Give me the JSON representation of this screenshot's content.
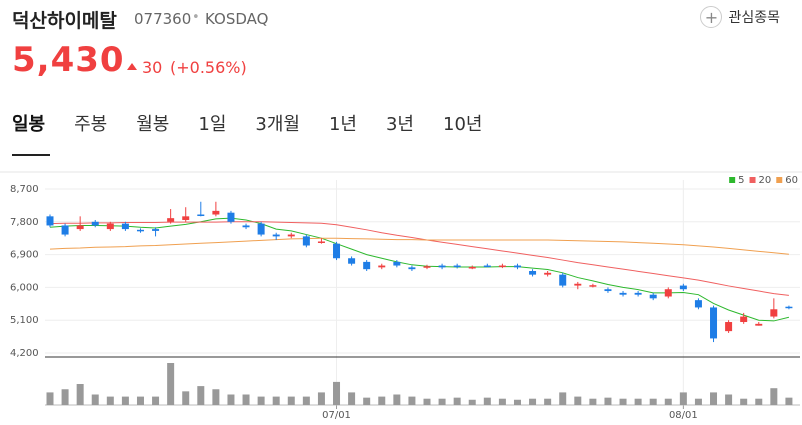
{
  "header": {
    "name": "덕산하이메탈",
    "code": "077360",
    "market": "KOSDAQ",
    "price": "5,430",
    "change": "30",
    "change_pct": "(+0.56%)",
    "watch_button": "관심종목"
  },
  "tabs": [
    "일봉",
    "주봉",
    "월봉",
    "1일",
    "3개월",
    "1년",
    "3년",
    "10년"
  ],
  "chart_data": {
    "type": "candlestick",
    "categories": [
      null,
      null,
      null,
      null,
      null,
      null,
      null,
      null,
      null,
      null,
      null,
      null,
      null,
      null,
      null,
      null,
      null,
      null,
      null,
      "07/01",
      null,
      null,
      null,
      null,
      null,
      null,
      null,
      null,
      null,
      null,
      null,
      null,
      null,
      null,
      null,
      null,
      null,
      null,
      null,
      null,
      null,
      null,
      "08/01",
      null,
      null,
      null,
      null,
      null,
      null,
      null
    ],
    "open": [
      7950,
      7700,
      7600,
      7800,
      7600,
      7750,
      7580,
      7600,
      7800,
      7850,
      8000,
      8000,
      8050,
      7700,
      7750,
      7450,
      7400,
      7400,
      7250,
      7200,
      6800,
      6700,
      6550,
      6700,
      6550,
      6550,
      6600,
      6600,
      6520,
      6600,
      6560,
      6600,
      6450,
      6350,
      6350,
      6050,
      6040,
      5950,
      5850,
      5850,
      5800,
      5750,
      6050,
      5650,
      5450,
      4800,
      5050,
      4950,
      5200,
      5470
    ],
    "high": [
      8000,
      7750,
      7950,
      7850,
      7800,
      7800,
      7620,
      7650,
      8150,
      8200,
      8350,
      8350,
      8100,
      7750,
      7800,
      7500,
      7500,
      7450,
      7350,
      7250,
      6850,
      6750,
      6650,
      6750,
      6600,
      6620,
      6650,
      6650,
      6600,
      6650,
      6650,
      6650,
      6500,
      6450,
      6400,
      6150,
      6100,
      6000,
      5900,
      5900,
      5850,
      6000,
      6100,
      5700,
      5500,
      5100,
      5300,
      5050,
      5700,
      5500
    ],
    "low": [
      7650,
      7400,
      7550,
      7650,
      7550,
      7550,
      7500,
      7400,
      7750,
      7800,
      7950,
      7950,
      7750,
      7600,
      7400,
      7300,
      7350,
      7100,
      7200,
      6750,
      6600,
      6450,
      6500,
      6550,
      6450,
      6500,
      6500,
      6520,
      6500,
      6550,
      6530,
      6500,
      6300,
      6300,
      6000,
      5950,
      6000,
      5850,
      5750,
      5750,
      5650,
      5700,
      5900,
      5400,
      4500,
      4750,
      5000,
      4950,
      5150,
      5400
    ],
    "close": [
      7700,
      7450,
      7700,
      7700,
      7750,
      7600,
      7550,
      7550,
      7900,
      7950,
      7990,
      8100,
      7800,
      7650,
      7450,
      7400,
      7450,
      7150,
      7260,
      6800,
      6650,
      6500,
      6600,
      6600,
      6500,
      6580,
      6550,
      6570,
      6560,
      6580,
      6600,
      6550,
      6350,
      6400,
      6050,
      6100,
      6060,
      5900,
      5800,
      5800,
      5700,
      5950,
      5950,
      5450,
      4600,
      5050,
      5200,
      5000,
      5400,
      5430
    ],
    "up_color": "#f04040",
    "down_color": "#1e7de6",
    "series": [
      {
        "name": "5",
        "color": "#2db82d",
        "values": [
          7650,
          7680,
          7700,
          7700,
          7690,
          7680,
          7650,
          7630,
          7680,
          7730,
          7800,
          7880,
          7900,
          7850,
          7750,
          7600,
          7550,
          7450,
          7350,
          7200,
          7050,
          6900,
          6800,
          6700,
          6620,
          6580,
          6570,
          6560,
          6560,
          6560,
          6570,
          6570,
          6530,
          6490,
          6400,
          6270,
          6180,
          6080,
          6000,
          5940,
          5850,
          5850,
          5860,
          5800,
          5560,
          5380,
          5240,
          5100,
          5080,
          5180
        ]
      },
      {
        "name": "20",
        "color": "#f06060",
        "values": [
          7750,
          7760,
          7760,
          7770,
          7770,
          7780,
          7780,
          7780,
          7790,
          7790,
          7790,
          7790,
          7800,
          7800,
          7800,
          7790,
          7780,
          7770,
          7760,
          7720,
          7650,
          7580,
          7500,
          7430,
          7370,
          7300,
          7240,
          7180,
          7120,
          7060,
          7000,
          6940,
          6880,
          6820,
          6750,
          6680,
          6620,
          6560,
          6500,
          6440,
          6380,
          6320,
          6260,
          6200,
          6120,
          6040,
          5970,
          5900,
          5830,
          5780
        ]
      },
      {
        "name": "60",
        "color": "#f0a050",
        "values": [
          7050,
          7070,
          7080,
          7100,
          7110,
          7120,
          7140,
          7150,
          7170,
          7190,
          7210,
          7230,
          7250,
          7270,
          7290,
          7310,
          7330,
          7340,
          7350,
          7350,
          7340,
          7330,
          7320,
          7310,
          7310,
          7300,
          7300,
          7300,
          7300,
          7300,
          7300,
          7300,
          7300,
          7300,
          7290,
          7280,
          7270,
          7260,
          7250,
          7230,
          7210,
          7190,
          7170,
          7140,
          7110,
          7070,
          7030,
          6990,
          6950,
          6910
        ]
      }
    ],
    "volume": {
      "color": "#999999",
      "values": [
        12,
        15,
        20,
        10,
        8,
        8,
        8,
        8,
        40,
        13,
        18,
        15,
        10,
        10,
        8,
        8,
        8,
        8,
        12,
        22,
        12,
        7,
        8,
        10,
        8,
        6,
        6,
        7,
        5,
        7,
        6,
        5,
        6,
        6,
        12,
        8,
        6,
        7,
        6,
        6,
        6,
        6,
        12,
        6,
        12,
        10,
        6,
        6,
        16,
        7
      ]
    },
    "ylim": [
      4200,
      8700
    ],
    "yticks": [
      {
        "value": 4200,
        "label": "4,200"
      },
      {
        "value": 5100,
        "label": "5,100"
      },
      {
        "value": 6000,
        "label": "6,000"
      },
      {
        "value": 6900,
        "label": "6,900"
      },
      {
        "value": 7800,
        "label": "7,800"
      },
      {
        "value": 8700,
        "label": "8,700"
      }
    ],
    "grid": true,
    "legend": "top-right"
  }
}
